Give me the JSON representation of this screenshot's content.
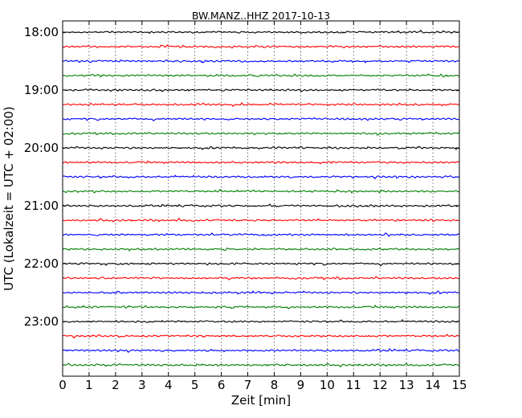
{
  "chart_data": {
    "type": "line",
    "title": "BW.MANZ..HHZ 2017-10-13",
    "xlabel": "Zeit  [min]",
    "ylabel": "UTC (Lokalzeit = UTC + 02:00)",
    "xlim": [
      0,
      15
    ],
    "x_ticks": [
      "0",
      "1",
      "2",
      "3",
      "4",
      "5",
      "6",
      "7",
      "8",
      "9",
      "10",
      "11",
      "12",
      "13",
      "14",
      "15"
    ],
    "y_ticks": [
      "18:00",
      "19:00",
      "20:00",
      "21:00",
      "22:00",
      "23:00"
    ],
    "grid": "vertical dotted lines at each minute",
    "trace_colors": [
      "#000000",
      "#ff0000",
      "#0000ff",
      "#008000"
    ],
    "traces": [
      {
        "start": "18:00",
        "color": "#000000"
      },
      {
        "start": "18:15",
        "color": "#ff0000"
      },
      {
        "start": "18:30",
        "color": "#0000ff"
      },
      {
        "start": "18:45",
        "color": "#008000"
      },
      {
        "start": "19:00",
        "color": "#000000"
      },
      {
        "start": "19:15",
        "color": "#ff0000"
      },
      {
        "start": "19:30",
        "color": "#0000ff"
      },
      {
        "start": "19:45",
        "color": "#008000"
      },
      {
        "start": "20:00",
        "color": "#000000"
      },
      {
        "start": "20:15",
        "color": "#ff0000"
      },
      {
        "start": "20:30",
        "color": "#0000ff"
      },
      {
        "start": "20:45",
        "color": "#008000"
      },
      {
        "start": "21:00",
        "color": "#000000"
      },
      {
        "start": "21:15",
        "color": "#ff0000"
      },
      {
        "start": "21:30",
        "color": "#0000ff"
      },
      {
        "start": "21:45",
        "color": "#008000"
      },
      {
        "start": "22:00",
        "color": "#000000"
      },
      {
        "start": "22:15",
        "color": "#ff0000"
      },
      {
        "start": "22:30",
        "color": "#0000ff"
      },
      {
        "start": "22:45",
        "color": "#008000"
      },
      {
        "start": "23:00",
        "color": "#000000"
      },
      {
        "start": "23:15",
        "color": "#ff0000"
      },
      {
        "start": "23:30",
        "color": "#0000ff"
      },
      {
        "start": "23:45",
        "color": "#008000"
      }
    ]
  }
}
